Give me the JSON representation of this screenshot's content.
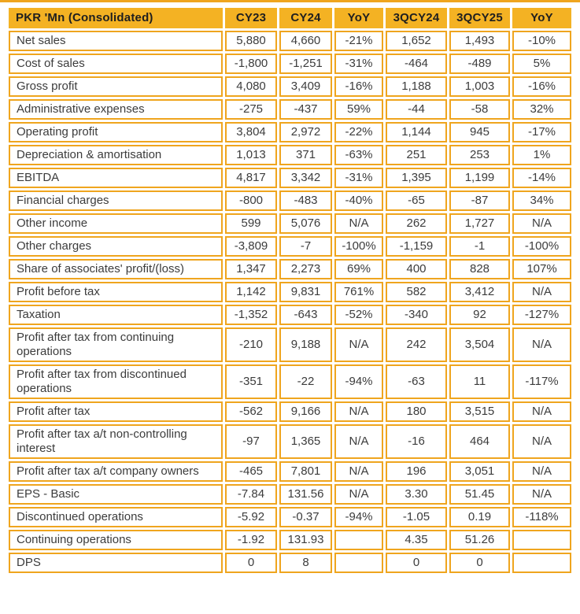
{
  "colors": {
    "accent": "#EFA51E",
    "header_bg": "#F4B223",
    "header_text": "#1F1F1F",
    "body_text": "#3C3C3C",
    "page_bg": "#FFFFFF"
  },
  "table": {
    "header": [
      "PKR 'Mn (Consolidated)",
      "CY23",
      "CY24",
      "YoY",
      "3QCY24",
      "3QCY25",
      "YoY"
    ],
    "rows": [
      {
        "label": "Net sales",
        "values": [
          "5,880",
          "4,660",
          "-21%",
          "1,652",
          "1,493",
          "-10%"
        ]
      },
      {
        "label": "Cost of sales",
        "values": [
          "-1,800",
          "-1,251",
          "-31%",
          "-464",
          "-489",
          "5%"
        ]
      },
      {
        "label": "Gross profit",
        "values": [
          "4,080",
          "3,409",
          "-16%",
          "1,188",
          "1,003",
          "-16%"
        ]
      },
      {
        "label": "Administrative expenses",
        "values": [
          "-275",
          "-437",
          "59%",
          "-44",
          "-58",
          "32%"
        ]
      },
      {
        "label": "Operating profit",
        "values": [
          "3,804",
          "2,972",
          "-22%",
          "1,144",
          "945",
          "-17%"
        ]
      },
      {
        "label": "Depreciation & amortisation",
        "values": [
          "1,013",
          "371",
          "-63%",
          "251",
          "253",
          "1%"
        ]
      },
      {
        "label": "EBITDA",
        "values": [
          "4,817",
          "3,342",
          "-31%",
          "1,395",
          "1,199",
          "-14%"
        ]
      },
      {
        "label": "Financial charges",
        "values": [
          "-800",
          "-483",
          "-40%",
          "-65",
          "-87",
          "34%"
        ]
      },
      {
        "label": "Other income",
        "values": [
          "599",
          "5,076",
          "N/A",
          "262",
          "1,727",
          "N/A"
        ]
      },
      {
        "label": "Other charges",
        "values": [
          "-3,809",
          "-7",
          "-100%",
          "-1,159",
          "-1",
          "-100%"
        ]
      },
      {
        "label": "Share of associates' profit/(loss)",
        "values": [
          "1,347",
          "2,273",
          "69%",
          "400",
          "828",
          "107%"
        ]
      },
      {
        "label": "Profit before tax",
        "values": [
          "1,142",
          "9,831",
          "761%",
          "582",
          "3,412",
          "N/A"
        ]
      },
      {
        "label": "Taxation",
        "values": [
          "-1,352",
          "-643",
          "-52%",
          "-340",
          "92",
          "-127%"
        ]
      },
      {
        "label": "Profit after tax from continuing operations",
        "values": [
          "-210",
          "9,188",
          "N/A",
          "242",
          "3,504",
          "N/A"
        ]
      },
      {
        "label": "Profit after tax from discontinued operations",
        "values": [
          "-351",
          "-22",
          "-94%",
          "-63",
          "11",
          "-117%"
        ]
      },
      {
        "label": "Profit after tax",
        "values": [
          "-562",
          "9,166",
          "N/A",
          "180",
          "3,515",
          "N/A"
        ]
      },
      {
        "label": "Profit after tax a/t non-controlling interest",
        "values": [
          "-97",
          "1,365",
          "N/A",
          "-16",
          "464",
          "N/A"
        ]
      },
      {
        "label": "Profit after tax a/t company owners",
        "values": [
          "-465",
          "7,801",
          "N/A",
          "196",
          "3,051",
          "N/A"
        ]
      },
      {
        "label": "EPS - Basic",
        "values": [
          "-7.84",
          "131.56",
          "N/A",
          "3.30",
          "51.45",
          "N/A"
        ]
      },
      {
        "label": "Discontinued operations",
        "values": [
          "-5.92",
          "-0.37",
          "-94%",
          "-1.05",
          "0.19",
          "-118%"
        ]
      },
      {
        "label": "Continuing operations",
        "values": [
          "-1.92",
          "131.93",
          "",
          "4.35",
          "51.26",
          ""
        ]
      },
      {
        "label": "DPS",
        "values": [
          "0",
          "8",
          "",
          "0",
          "0",
          ""
        ]
      }
    ]
  }
}
